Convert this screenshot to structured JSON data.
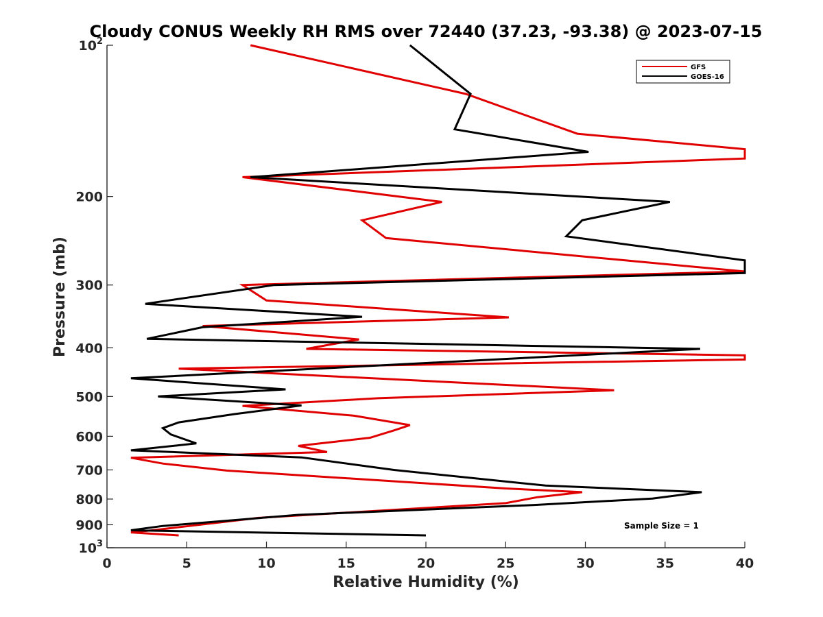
{
  "chart_data": {
    "type": "line",
    "title": "Cloudy CONUS Weekly RH RMS over 72440 (37.23, -93.38) @ 2023-07-15",
    "xlabel": "Relative Humidity (%)",
    "ylabel": "Pressure (mb)",
    "xlim": [
      0,
      40
    ],
    "ylim": [
      100,
      1000
    ],
    "y_scale": "log",
    "y_reversed": true,
    "grid": false,
    "legend_position": "top-right",
    "annotation": "Sample Size = 1",
    "x_ticks": [
      "0",
      "5",
      "10",
      "15",
      "20",
      "25",
      "30",
      "35",
      "40"
    ],
    "y_ticks": [
      {
        "value": 100,
        "label": "10",
        "sup": "2"
      },
      {
        "value": 200,
        "label": "200",
        "sup": ""
      },
      {
        "value": 300,
        "label": "300",
        "sup": ""
      },
      {
        "value": 400,
        "label": "400",
        "sup": ""
      },
      {
        "value": 500,
        "label": "500",
        "sup": ""
      },
      {
        "value": 600,
        "label": "600",
        "sup": ""
      },
      {
        "value": 700,
        "label": "700",
        "sup": ""
      },
      {
        "value": 800,
        "label": "800",
        "sup": ""
      },
      {
        "value": 900,
        "label": "900",
        "sup": ""
      },
      {
        "value": 1000,
        "label": "10",
        "sup": "3"
      }
    ],
    "series": [
      {
        "name": "GFS",
        "color": "#e00000",
        "points": [
          [
            9.0,
            100
          ],
          [
            22.5,
            125
          ],
          [
            29.5,
            150
          ],
          [
            40.0,
            161
          ],
          [
            40.0,
            168
          ],
          [
            8.5,
            183
          ],
          [
            21.0,
            205
          ],
          [
            16.0,
            223
          ],
          [
            17.5,
            242
          ],
          [
            40.0,
            282
          ],
          [
            8.5,
            300
          ],
          [
            10.0,
            322
          ],
          [
            25.2,
            348
          ],
          [
            6.0,
            362
          ],
          [
            15.8,
            385
          ],
          [
            12.5,
            402
          ],
          [
            40.0,
            414
          ],
          [
            40.0,
            422
          ],
          [
            4.5,
            440
          ],
          [
            31.8,
            486
          ],
          [
            17.0,
            504
          ],
          [
            8.5,
            522
          ],
          [
            15.5,
            546
          ],
          [
            19.0,
            570
          ],
          [
            18.0,
            584
          ],
          [
            16.5,
            604
          ],
          [
            12.0,
            627
          ],
          [
            13.8,
            645
          ],
          [
            1.5,
            662
          ],
          [
            3.5,
            680
          ],
          [
            7.5,
            702
          ],
          [
            25.0,
            762
          ],
          [
            29.8,
            775
          ],
          [
            27.0,
            793
          ],
          [
            25.0,
            815
          ],
          [
            9.5,
            872
          ],
          [
            3.0,
            922
          ],
          [
            1.5,
            932
          ],
          [
            4.5,
            945
          ]
        ]
      },
      {
        "name": "GOES-16",
        "color": "#000000",
        "points": [
          [
            19.0,
            100
          ],
          [
            22.8,
            125
          ],
          [
            21.8,
            147
          ],
          [
            30.2,
            163
          ],
          [
            9.0,
            183
          ],
          [
            35.3,
            205
          ],
          [
            29.8,
            223
          ],
          [
            28.8,
            240
          ],
          [
            40.0,
            268
          ],
          [
            40.0,
            284
          ],
          [
            10.5,
            300
          ],
          [
            2.4,
            327
          ],
          [
            16.0,
            347
          ],
          [
            6.0,
            364
          ],
          [
            2.5,
            384
          ],
          [
            37.2,
            402
          ],
          [
            1.5,
            460
          ],
          [
            11.2,
            484
          ],
          [
            3.2,
            500
          ],
          [
            12.2,
            521
          ],
          [
            8.0,
            542
          ],
          [
            4.5,
            563
          ],
          [
            3.5,
            578
          ],
          [
            4.0,
            595
          ],
          [
            5.6,
            620
          ],
          [
            1.5,
            640
          ],
          [
            12.2,
            661
          ],
          [
            18.0,
            700
          ],
          [
            27.5,
            752
          ],
          [
            37.3,
            775
          ],
          [
            34.2,
            798
          ],
          [
            26.8,
            822
          ],
          [
            12.0,
            860
          ],
          [
            3.5,
            905
          ],
          [
            1.5,
            923
          ],
          [
            20.0,
            945
          ]
        ]
      }
    ]
  }
}
